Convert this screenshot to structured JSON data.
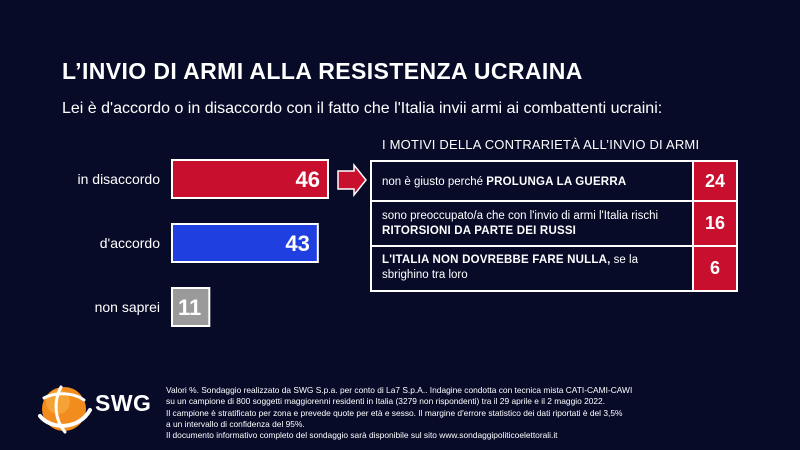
{
  "title": "L’INVIO DI ARMI ALLA RESISTENZA UCRAINA",
  "subtitle": "Lei è d'accordo o in disaccordo con il fatto che l'Italia invii armi ai combattenti ucraini:",
  "chart_data": {
    "type": "bar",
    "orientation": "horizontal",
    "categories": [
      "in disaccordo",
      "d'accordo",
      "non saprei"
    ],
    "values": [
      46,
      43,
      11
    ],
    "colors": [
      "#c8102e",
      "#1f3fe0",
      "#9a9a9a"
    ],
    "xlim": [
      0,
      46
    ],
    "unit": "%"
  },
  "reasons": {
    "title": "I MOTIVI DELLA CONTRARIETÀ ALL’INVIO DI ARMI",
    "color": "#c8102e",
    "items": [
      {
        "pre": "non è giusto perché ",
        "bold": "PROLUNGA LA GUERRA",
        "post": "",
        "value": "24"
      },
      {
        "pre": "sono preoccupato/a che con l'invio di armi l'Italia rischi ",
        "bold": "RITORSIONI DA PARTE DEI RUSSI",
        "post": "",
        "value": "16"
      },
      {
        "pre": "",
        "bold": "L'ITALIA NON DOVREBBE FARE NULLA,",
        "post": " se la sbrighino tra loro",
        "value": "6"
      }
    ]
  },
  "logo": {
    "text": "SWG",
    "accent": "#f28c1c"
  },
  "footnote": [
    "Valori %. Sondaggio realizzato da SWG S.p.a. per conto di La7 S.p.A.. Indagine condotta con tecnica mista CATI-CAMI-CAWI",
    "su un campione di 800 soggetti maggiorenni residenti in Italia (3279 non rispondenti) tra il 29 aprile e il 2 maggio 2022.",
    "Il campione è stratificato per zona e prevede quote per età e sesso. Il margine d'errore statistico dei dati riportati è del 3,5%",
    "a un intervallo di confidenza del 95%.",
    "Il documento informativo completo del sondaggio sarà disponibile sul sito www.sondaggipoliticoelettorali.it"
  ]
}
